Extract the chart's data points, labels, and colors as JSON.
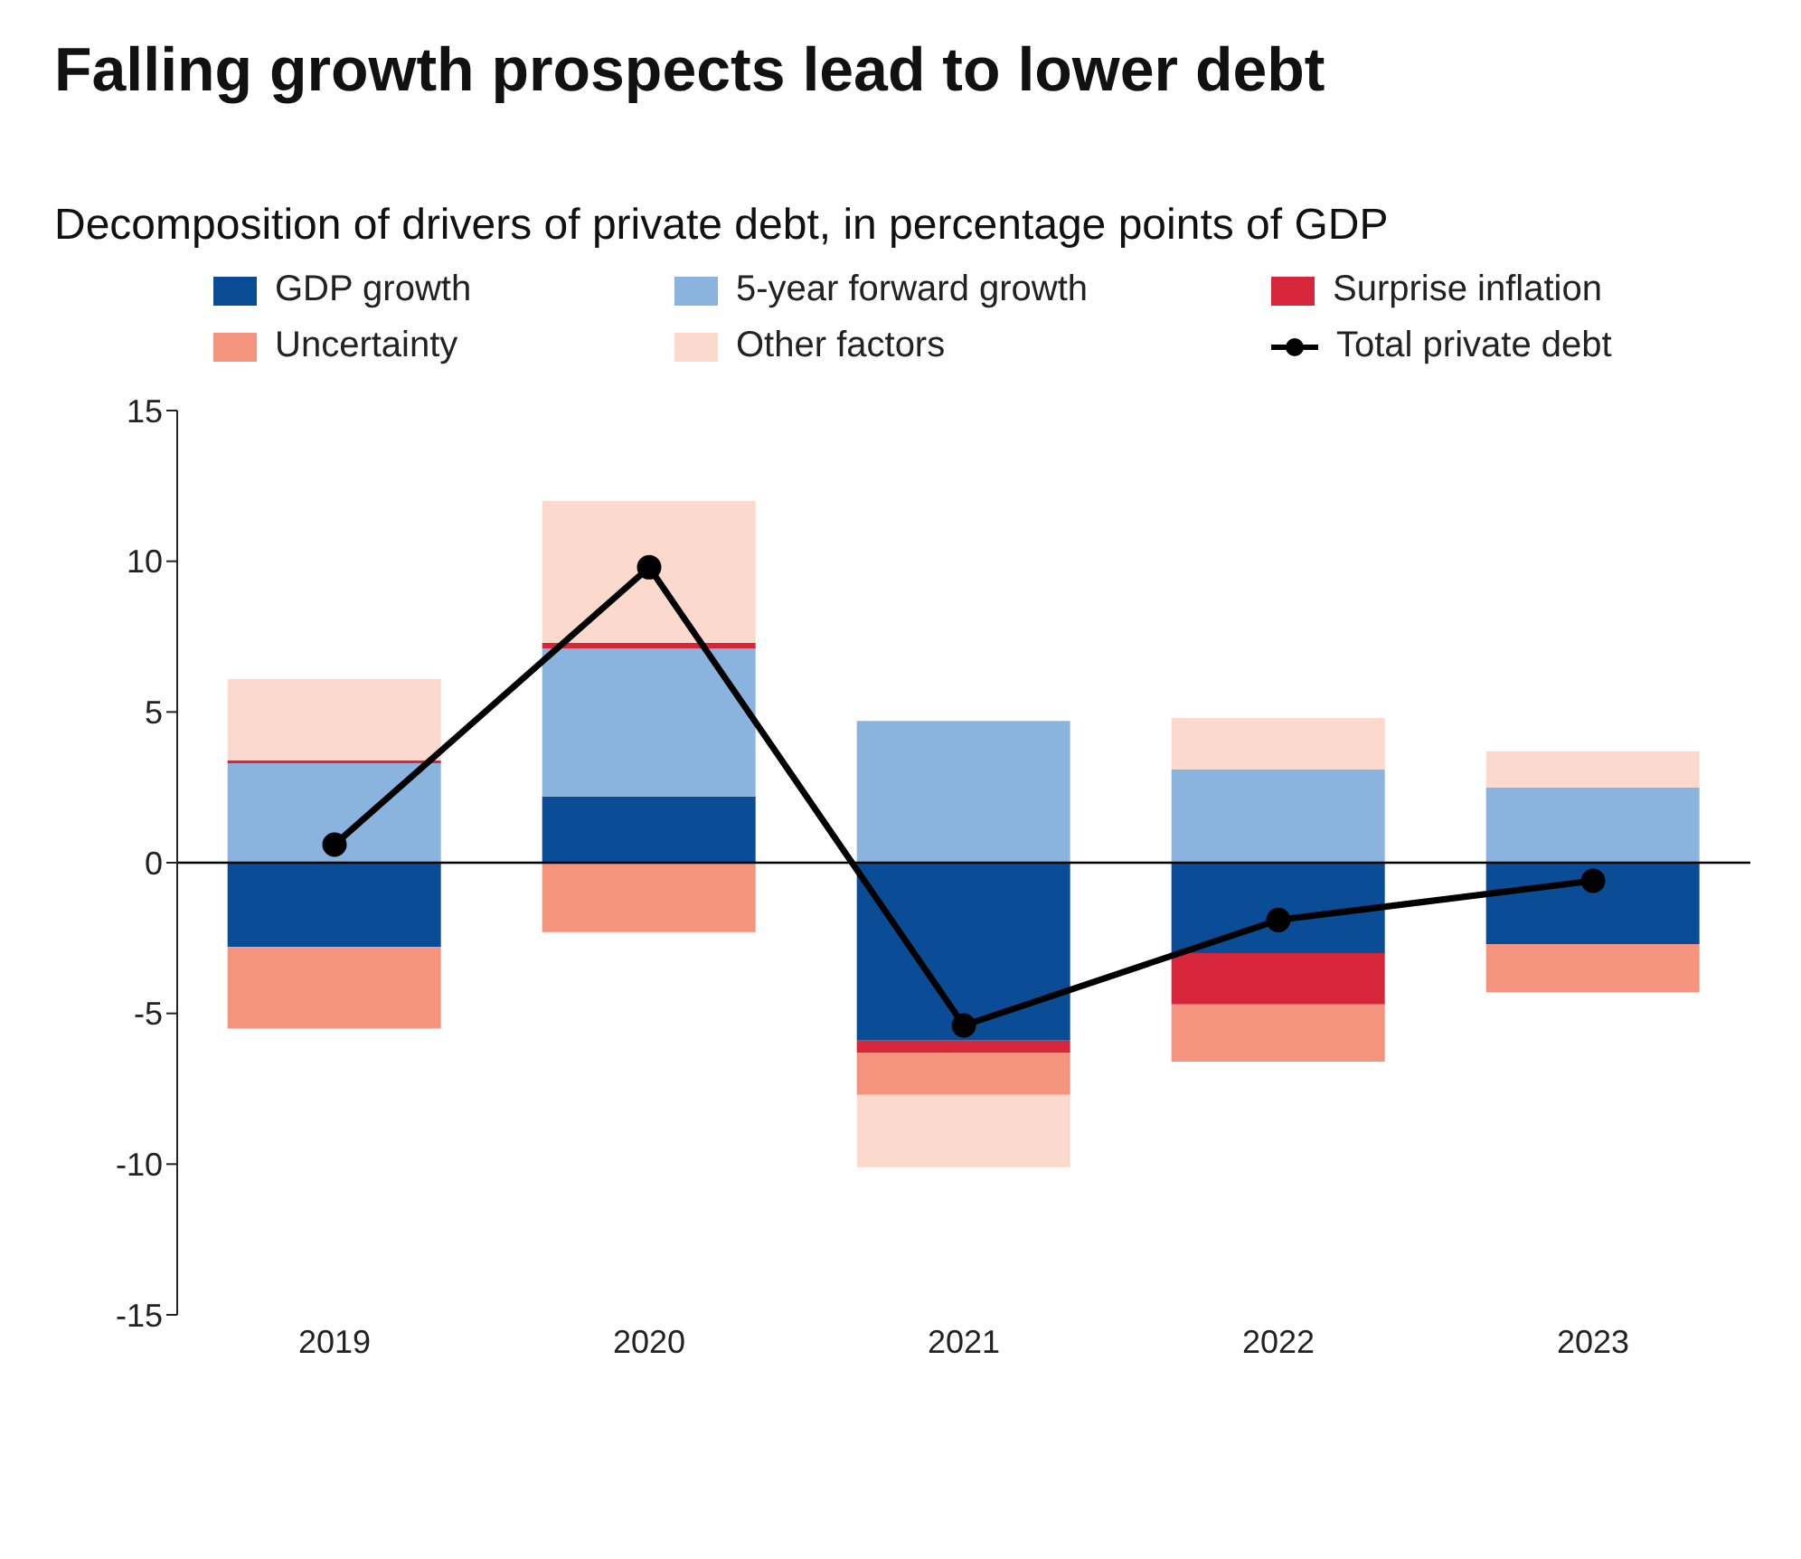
{
  "chart_data": {
    "type": "bar",
    "title": "Falling growth prospects lead to lower debt",
    "subtitle": "Decomposition of drivers of private debt, in percentage points of GDP",
    "categories": [
      "2019",
      "2020",
      "2021",
      "2022",
      "2023"
    ],
    "stacked": true,
    "series": [
      {
        "name": "GDP growth",
        "color": "#0a4c96",
        "values": [
          -2.8,
          2.2,
          -5.9,
          -3.0,
          -2.7
        ]
      },
      {
        "name": "5-year forward growth",
        "color": "#8ab4de",
        "values": [
          3.3,
          4.9,
          4.7,
          3.1,
          2.5
        ]
      },
      {
        "name": "Surprise inflation",
        "color": "#d7263a",
        "values": [
          0.1,
          0.2,
          -0.4,
          -1.7,
          null
        ]
      },
      {
        "name": "Uncertainty",
        "color": "#f4937e",
        "values": [
          -2.7,
          -2.3,
          -1.4,
          -1.9,
          -1.6
        ]
      },
      {
        "name": "Other factors",
        "color": "#fbd9cc",
        "values": [
          2.7,
          4.7,
          -2.4,
          1.7,
          1.2
        ]
      },
      {
        "name": "Total private debt",
        "type": "line",
        "color": "#000000",
        "values": [
          0.6,
          9.8,
          -5.4,
          -1.9,
          -0.6
        ],
        "marker": "circle"
      }
    ],
    "ylim": [
      -15,
      15
    ],
    "yticks": [
      -15,
      -10,
      -5,
      0,
      5,
      10,
      15
    ],
    "grid": false,
    "legend": "top",
    "ref_lines": [
      {
        "axis": "y",
        "value": 0,
        "color": "#000000"
      }
    ]
  }
}
